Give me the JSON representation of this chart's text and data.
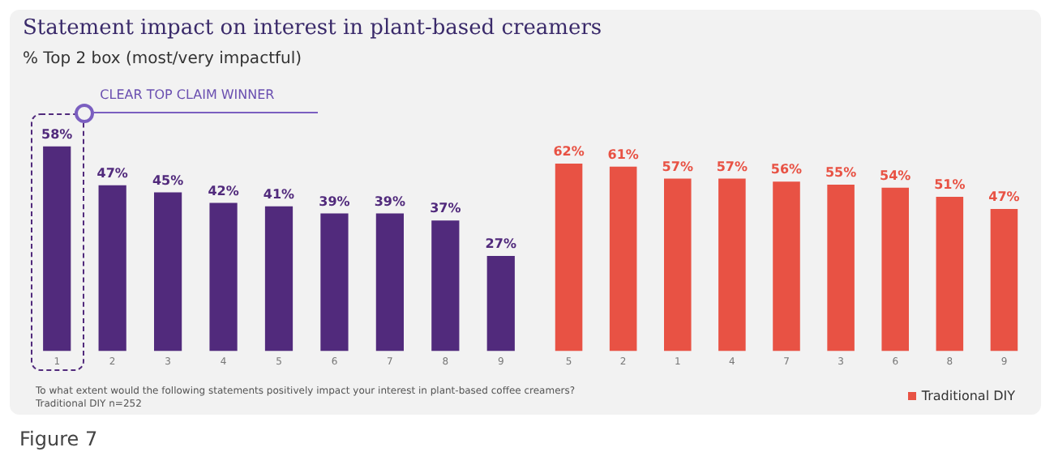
{
  "chart_data": [
    {
      "type": "bar",
      "title": "Statement impact on interest in plant-based creamers",
      "subtitle": "% Top 2 box (most/very impactful)",
      "categories": [
        "1",
        "2",
        "3",
        "4",
        "5",
        "6",
        "7",
        "8",
        "9"
      ],
      "series": [
        {
          "color": "#512a7c",
          "values": [
            58,
            47,
            45,
            42,
            41,
            39,
            39,
            37,
            27
          ],
          "value_labels": [
            "58%",
            "47%",
            "45%",
            "42%",
            "41%",
            "39%",
            "39%",
            "37%",
            "27%"
          ]
        }
      ],
      "grid": false,
      "annotations": [
        "CLEAR TOP CLAIM WINNER",
        "To what extent would the following statements positively impact your interest in plant-based coffee creamers?",
        "Traditional DIY n=252",
        "Figure 7"
      ]
    },
    {
      "type": "bar",
      "categories": [
        "5",
        "2",
        "1",
        "4",
        "7",
        "3",
        "6",
        "8",
        "9"
      ],
      "series": [
        {
          "name": "Traditional DIY",
          "color": "#e85244",
          "values": [
            62,
            61,
            57,
            57,
            56,
            55,
            54,
            51,
            47
          ],
          "value_labels": [
            "62%",
            "61%",
            "57%",
            "57%",
            "56%",
            "55%",
            "54%",
            "51%",
            "47%"
          ]
        }
      ],
      "grid": false,
      "legend": "bottom right"
    }
  ]
}
